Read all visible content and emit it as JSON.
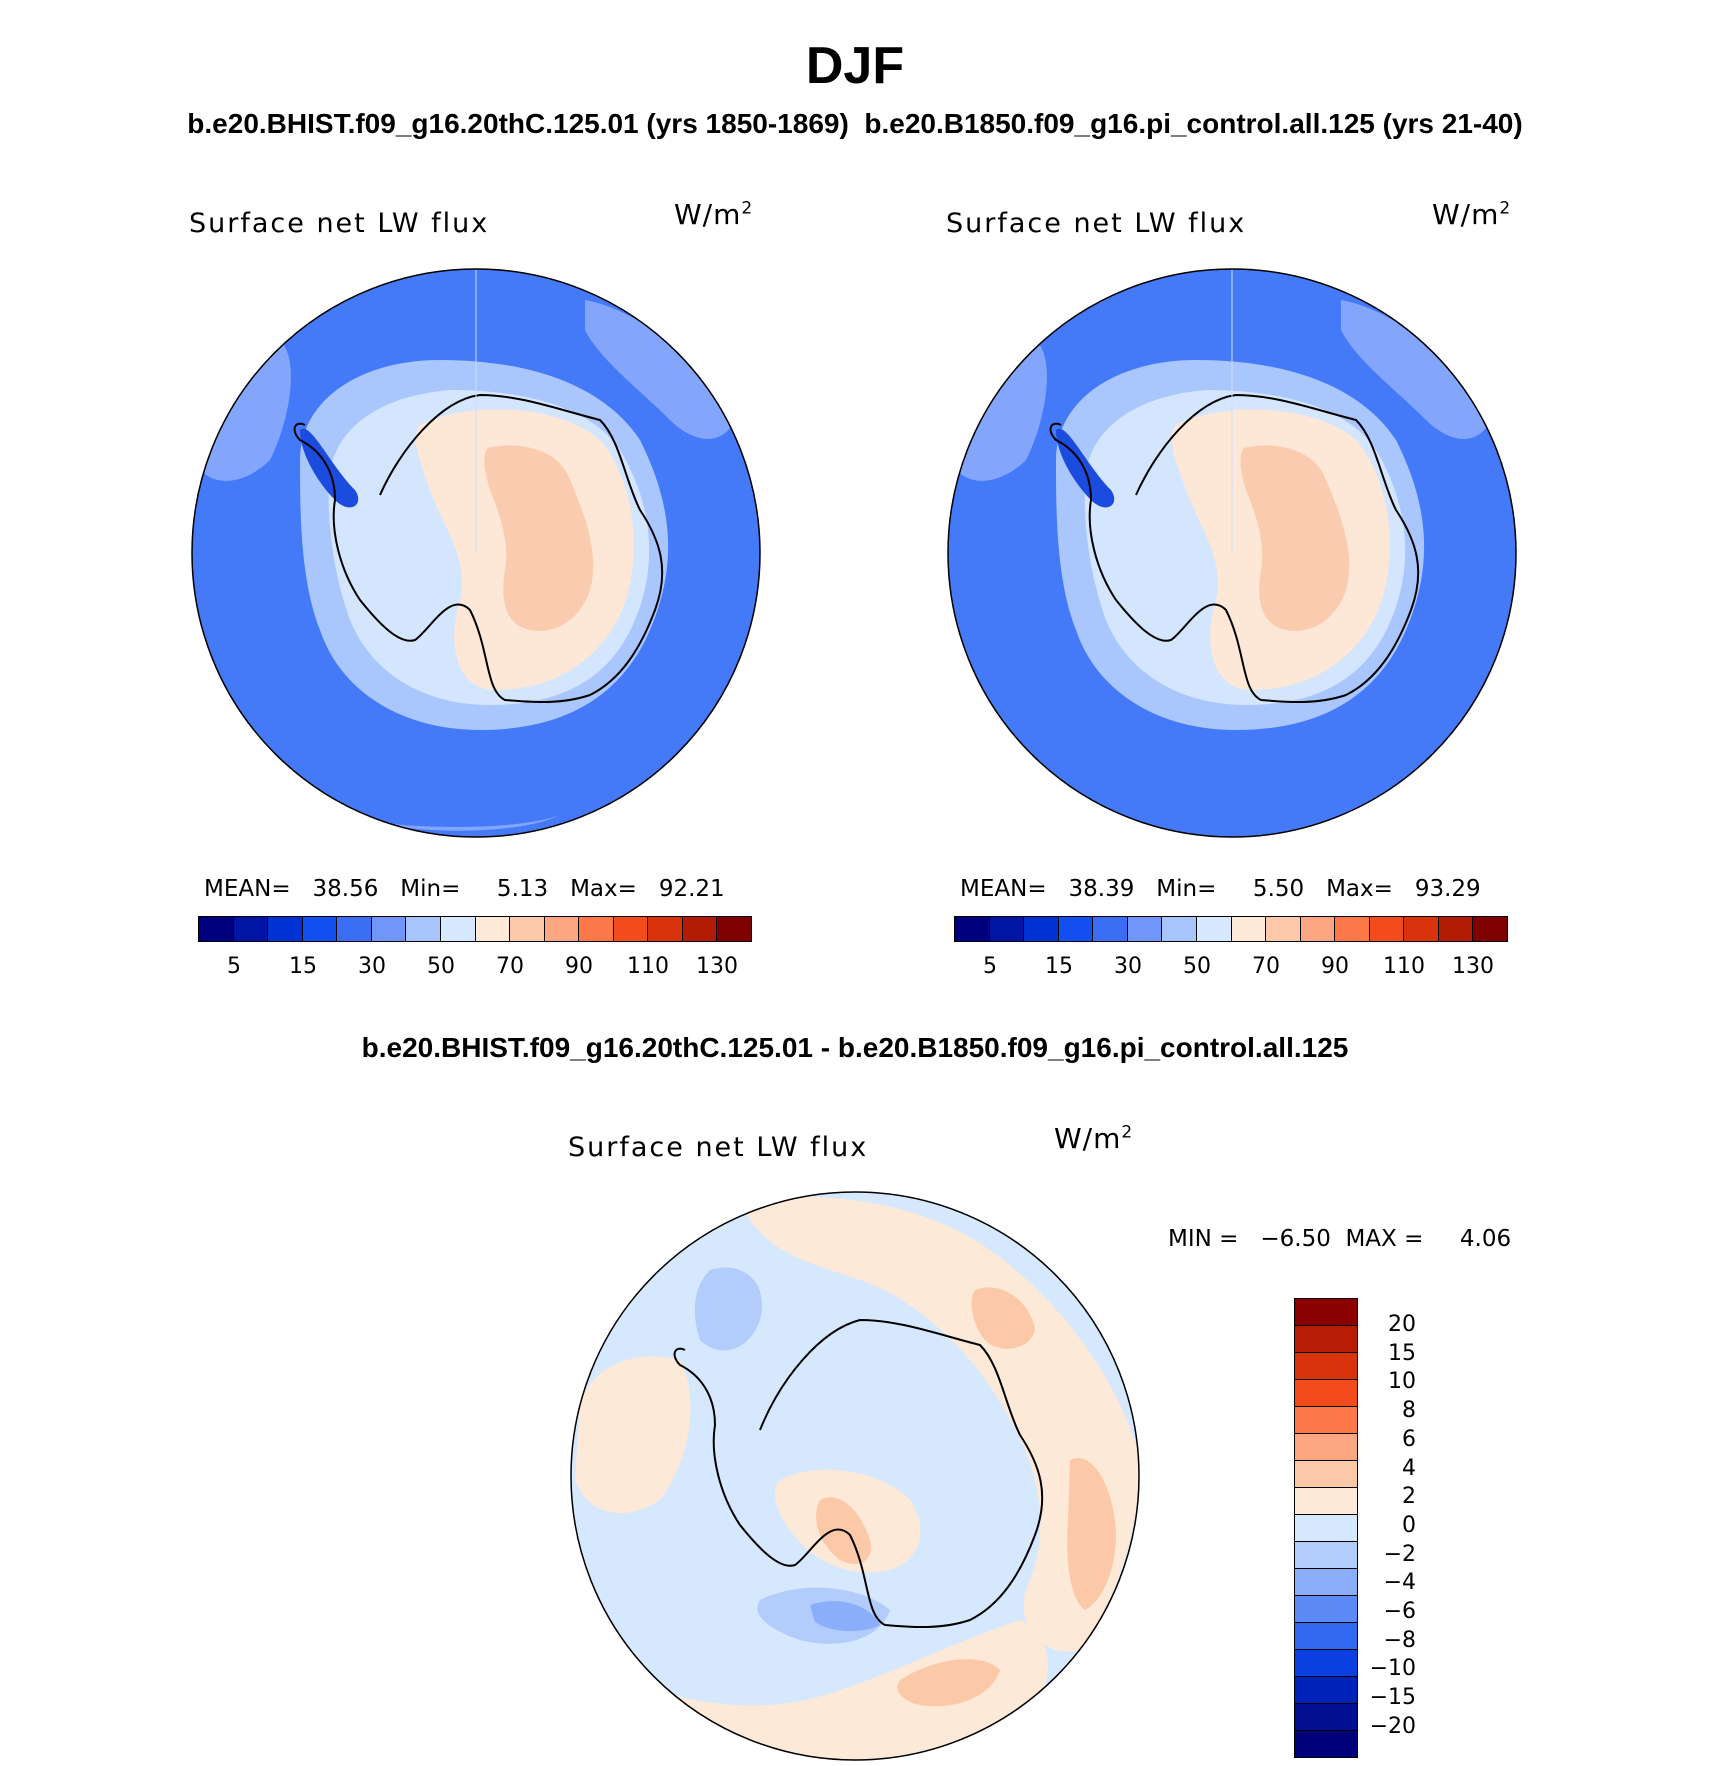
{
  "title": "DJF",
  "header_subtitle": {
    "case1": "b.e20.BHIST.f09_g16.20thC.125.01 (yrs 1850-1869)",
    "case2": "b.e20.B1850.f09_g16.pi_control.all.125 (yrs 21-40)"
  },
  "diff_subtitle": "b.e20.BHIST.f09_g16.20thC.125.01 - b.e20.B1850.f09_g16.pi_control.all.125",
  "panels": [
    {
      "variable": "Surface net LW flux",
      "units": "W/m",
      "units_exp": "2",
      "stats": "MEAN=   38.56   Min=     5.13   Max=   92.21",
      "mean": 38.56,
      "min": 5.13,
      "max": 92.21
    },
    {
      "variable": "Surface net LW flux",
      "units": "W/m",
      "units_exp": "2",
      "stats": "MEAN=   38.39   Min=     5.50   Max=   93.29",
      "mean": 38.39,
      "min": 5.5,
      "max": 93.29
    }
  ],
  "diff_panel": {
    "variable": "Surface net LW flux",
    "units": "W/m",
    "units_exp": "2",
    "stats": "MIN =   −6.50  MAX =     4.06",
    "min": -6.5,
    "max": 4.06
  },
  "colorbar_top": {
    "colors": [
      "#00007f",
      "#0014a6",
      "#0032d4",
      "#1450f0",
      "#3c6ef5",
      "#7096fa",
      "#a8c4fc",
      "#d6e8fe",
      "#fde9d8",
      "#fcc9a8",
      "#fca682",
      "#fc7848",
      "#f24b1c",
      "#d9330c",
      "#b21c07",
      "#7f0000"
    ],
    "tick_labels": [
      "5",
      "15",
      "30",
      "50",
      "70",
      "90",
      "110",
      "130"
    ]
  },
  "colorbar_diff": {
    "colors_top_to_bottom": [
      "#8b0000",
      "#b71c07",
      "#d9330c",
      "#f24b1c",
      "#fc7848",
      "#fca682",
      "#fcc9a8",
      "#fde9d8",
      "#d6e8fe",
      "#b2ccfc",
      "#8aaefa",
      "#5c8af5",
      "#3068f0",
      "#0a3fe0",
      "#0022b8",
      "#000f8f",
      "#00007a"
    ],
    "tick_labels": [
      "20",
      "15",
      "10",
      "8",
      "6",
      "4",
      "2",
      "0",
      "−2",
      "−4",
      "−6",
      "−8",
      "−10",
      "−15",
      "−20"
    ]
  },
  "map_colors": {
    "ocean": "#4479f8",
    "light_ocean": "#83a6fc",
    "sea_ice": "#a9c6fd",
    "coast": "#d3e6fe",
    "interior": "#fde7d6",
    "plateau": "#fbcbaf",
    "peninsula_dark": "#1b4cde",
    "diff_neutral_neg": "#d6e8fe",
    "diff_neutral_pos": "#fde9d8",
    "diff_neg": "#b2ccfc",
    "diff_pos": "#fcc9a8",
    "diff_neg_strong": "#8aaefa"
  }
}
